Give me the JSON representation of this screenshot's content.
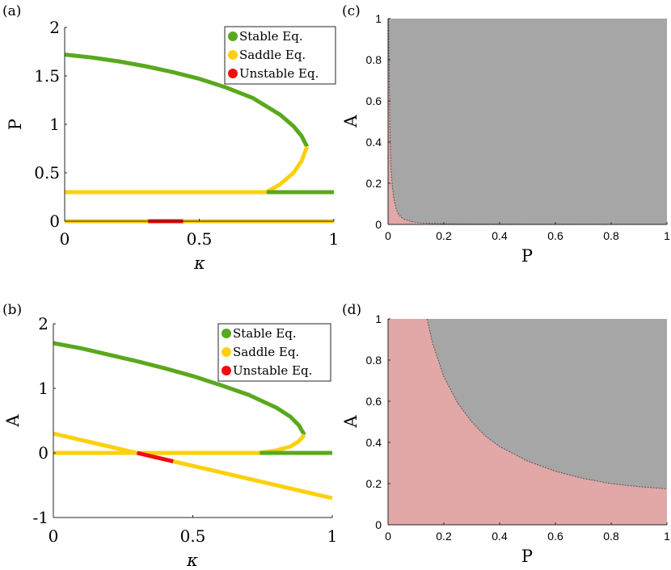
{
  "colors": {
    "stable": "#5aa81e",
    "saddle": "#fdd00e",
    "unstable": "#ee0d0d",
    "basin_gray": "#a6a6a6",
    "basin_pink": "#e2a7a7"
  },
  "panels": {
    "a": {
      "letter": "(a)"
    },
    "b": {
      "letter": "(b)"
    },
    "c": {
      "letter": "(c)"
    },
    "d": {
      "letter": "(d)"
    }
  },
  "chart_data": [
    {
      "id": "a",
      "type": "line",
      "title": "",
      "xlabel": "κ",
      "ylabel": "P",
      "xlim": [
        0,
        1
      ],
      "ylim": [
        0,
        2
      ],
      "xticks": [
        "0",
        "0.5",
        "1"
      ],
      "yticks": [
        "0",
        "0.5",
        "1",
        "1.5",
        "2"
      ],
      "legend": {
        "position": "top-right",
        "entries": [
          {
            "label": "Stable Eq.",
            "color_key": "stable"
          },
          {
            "label": "Saddle Eq.",
            "color_key": "saddle"
          },
          {
            "label": "Unstable Eq.",
            "color_key": "unstable"
          }
        ]
      },
      "series": [
        {
          "name": "upper branch (stable)",
          "kind": "stable",
          "x": [
            0,
            0.1,
            0.2,
            0.3,
            0.4,
            0.5,
            0.6,
            0.7,
            0.8,
            0.85,
            0.88,
            0.9
          ],
          "y": [
            1.72,
            1.69,
            1.65,
            1.6,
            1.54,
            1.47,
            1.38,
            1.27,
            1.1,
            0.98,
            0.88,
            0.77
          ]
        },
        {
          "name": "middle branch (saddle)",
          "kind": "saddle",
          "x": [
            0,
            0.75,
            0.8,
            0.85,
            0.88,
            0.9
          ],
          "y": [
            0.3,
            0.3,
            0.38,
            0.5,
            0.62,
            0.77
          ]
        },
        {
          "name": "low branch (stable)",
          "kind": "stable",
          "x": [
            0.75,
            1
          ],
          "y": [
            0.3,
            0.3
          ]
        },
        {
          "name": "zero branch (saddle)",
          "kind": "saddle",
          "x": [
            0,
            0.31
          ],
          "y": [
            0,
            0
          ]
        },
        {
          "name": "zero branch (unstable)",
          "kind": "unstable",
          "x": [
            0.31,
            0.44
          ],
          "y": [
            0,
            0
          ]
        },
        {
          "name": "zero branch (saddle)",
          "kind": "saddle",
          "x": [
            0.44,
            1
          ],
          "y": [
            0,
            0
          ]
        }
      ]
    },
    {
      "id": "b",
      "type": "line",
      "title": "",
      "xlabel": "κ",
      "ylabel": "A",
      "xlim": [
        0,
        1
      ],
      "ylim": [
        -1,
        2
      ],
      "xticks": [
        "0",
        "0.5",
        "1"
      ],
      "yticks": [
        "-1",
        "0",
        "1",
        "2"
      ],
      "legend": {
        "position": "top-right",
        "entries": [
          {
            "label": "Stable Eq.",
            "color_key": "stable"
          },
          {
            "label": "Saddle Eq.",
            "color_key": "saddle"
          },
          {
            "label": "Unstable Eq.",
            "color_key": "unstable"
          }
        ]
      },
      "series": [
        {
          "name": "upper branch (stable)",
          "kind": "stable",
          "x": [
            0,
            0.1,
            0.2,
            0.3,
            0.4,
            0.5,
            0.6,
            0.7,
            0.8,
            0.85,
            0.88,
            0.9
          ],
          "y": [
            1.7,
            1.62,
            1.52,
            1.42,
            1.31,
            1.19,
            1.05,
            0.9,
            0.7,
            0.56,
            0.43,
            0.28
          ]
        },
        {
          "name": "middle branch (saddle)",
          "kind": "saddle",
          "x": [
            0,
            0.74,
            0.8,
            0.85,
            0.88,
            0.9
          ],
          "y": [
            0,
            0,
            0.04,
            0.1,
            0.18,
            0.28
          ]
        },
        {
          "name": "low branch (stable)",
          "kind": "stable",
          "x": [
            0.74,
            1
          ],
          "y": [
            0,
            0
          ]
        },
        {
          "name": "descending branch (saddle)",
          "kind": "saddle",
          "x": [
            0,
            0.3
          ],
          "y": [
            0.3,
            -0.0
          ]
        },
        {
          "name": "descending branch (unstable)",
          "kind": "unstable",
          "x": [
            0.3,
            0.43
          ],
          "y": [
            -0.0,
            -0.13
          ]
        },
        {
          "name": "descending branch (saddle)",
          "kind": "saddle",
          "x": [
            0.43,
            1
          ],
          "y": [
            -0.13,
            -0.7
          ]
        }
      ]
    },
    {
      "id": "c",
      "type": "area",
      "title": "",
      "xlabel": "P",
      "ylabel": "A",
      "xlim": [
        0,
        1
      ],
      "ylim": [
        0,
        1
      ],
      "xticks": [
        "0",
        "0.2",
        "0.4",
        "0.6",
        "0.8",
        "1"
      ],
      "yticks": [
        "0",
        "0.2",
        "0.4",
        "0.6",
        "0.8",
        "1"
      ],
      "regions": [
        {
          "name": "gray basin (upper right)",
          "color_key": "basin_gray"
        },
        {
          "name": "pink basin (below boundary)",
          "color_key": "basin_pink"
        }
      ],
      "boundary": {
        "x": [
          0.002,
          0.004,
          0.006,
          0.008,
          0.01,
          0.015,
          0.02,
          0.03,
          0.04,
          0.05,
          0.06,
          0.08,
          0.1,
          0.12,
          0.15,
          0.2,
          0.3,
          0.5,
          0.8,
          1.0
        ],
        "y": [
          1.0,
          0.75,
          0.5,
          0.37,
          0.29,
          0.19,
          0.13,
          0.07,
          0.045,
          0.032,
          0.024,
          0.015,
          0.01,
          0.007,
          0.005,
          0.003,
          0.002,
          0.001,
          0.0005,
          0.0003
        ]
      }
    },
    {
      "id": "d",
      "type": "area",
      "title": "",
      "xlabel": "P",
      "ylabel": "A",
      "xlim": [
        0,
        1
      ],
      "ylim": [
        0,
        1
      ],
      "xticks": [
        "0",
        "0.2",
        "0.4",
        "0.6",
        "0.8",
        "1"
      ],
      "yticks": [
        "0",
        "0.2",
        "0.4",
        "0.6",
        "0.8",
        "1"
      ],
      "regions": [
        {
          "name": "gray basin (upper right)",
          "color_key": "basin_gray"
        },
        {
          "name": "pink basin (below boundary)",
          "color_key": "basin_pink"
        }
      ],
      "boundary": {
        "x": [
          0.14,
          0.16,
          0.18,
          0.2,
          0.25,
          0.3,
          0.35,
          0.4,
          0.5,
          0.6,
          0.7,
          0.8,
          0.9,
          1.0
        ],
        "y": [
          1.0,
          0.88,
          0.8,
          0.72,
          0.59,
          0.5,
          0.43,
          0.38,
          0.31,
          0.26,
          0.225,
          0.2,
          0.185,
          0.175
        ]
      }
    }
  ]
}
